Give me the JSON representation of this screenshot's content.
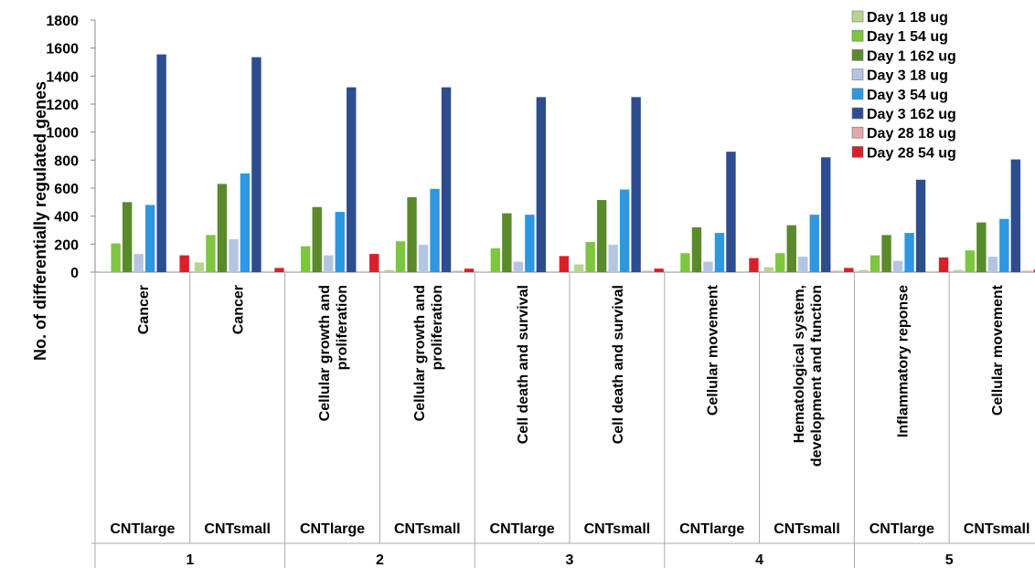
{
  "chart_data": {
    "type": "bar",
    "ylabel": "No. of differentially  regulated genes",
    "ylim": [
      0,
      1800
    ],
    "yticks": [
      0,
      200,
      400,
      600,
      800,
      1000,
      1200,
      1400,
      1600,
      1800
    ],
    "categories": [
      "Cancer",
      "Cancer",
      "Cellular growth and proliferation",
      "Cellular growth and proliferation",
      "Cell death and survival",
      "Cell death and survival",
      "Cellular movement",
      "Hematological system, development and function",
      "Inflammatory reponse",
      "Cellular movement"
    ],
    "category_lines": [
      [
        "Cancer"
      ],
      [
        "Cancer"
      ],
      [
        "Cellular growth and",
        "proliferation"
      ],
      [
        "Cellular growth and",
        "proliferation"
      ],
      [
        "Cell death and survival"
      ],
      [
        "Cell death and survival"
      ],
      [
        "Cellular movement"
      ],
      [
        "Hematological system,",
        "development and function"
      ],
      [
        "Inflammatory reponse"
      ],
      [
        "Cellular movement"
      ]
    ],
    "subgroups": [
      "CNTlarge",
      "CNTsmall",
      "CNTlarge",
      "CNTsmall",
      "CNTlarge",
      "CNTsmall",
      "CNTlarge",
      "CNTsmall",
      "CNTlarge",
      "CNTsmall"
    ],
    "groups": [
      "1",
      "2",
      "3",
      "4",
      "5"
    ],
    "legend_position": "top-right",
    "grid": false,
    "series": [
      {
        "name": "Day 1 18 ug",
        "color": "#b7d48f",
        "values": [
          5,
          70,
          5,
          15,
          5,
          55,
          5,
          35,
          15,
          15
        ]
      },
      {
        "name": "Day 1 54 ug",
        "color": "#7ec540",
        "values": [
          205,
          265,
          185,
          220,
          170,
          215,
          135,
          135,
          120,
          155
        ]
      },
      {
        "name": "Day 1 162 ug",
        "color": "#5a8a2c",
        "values": [
          500,
          630,
          465,
          535,
          420,
          515,
          320,
          335,
          265,
          355
        ]
      },
      {
        "name": "Day 3 18 ug",
        "color": "#b3c5e0",
        "values": [
          130,
          235,
          120,
          195,
          75,
          195,
          75,
          110,
          80,
          110
        ]
      },
      {
        "name": "Day 3 54 ug",
        "color": "#2f97e0",
        "values": [
          480,
          705,
          430,
          595,
          410,
          590,
          280,
          410,
          280,
          380
        ]
      },
      {
        "name": "Day 3 162 ug",
        "color": "#2d4d8f",
        "values": [
          1555,
          1535,
          1320,
          1320,
          1250,
          1250,
          860,
          820,
          660,
          805
        ]
      },
      {
        "name": "Day 28 18 ug",
        "color": "#e3a8a8",
        "values": [
          5,
          5,
          5,
          10,
          5,
          10,
          5,
          10,
          5,
          10
        ]
      },
      {
        "name": "Day 28 54 ug",
        "color": "#d9202a",
        "values": [
          120,
          30,
          130,
          25,
          115,
          25,
          100,
          30,
          105,
          20
        ]
      }
    ]
  }
}
